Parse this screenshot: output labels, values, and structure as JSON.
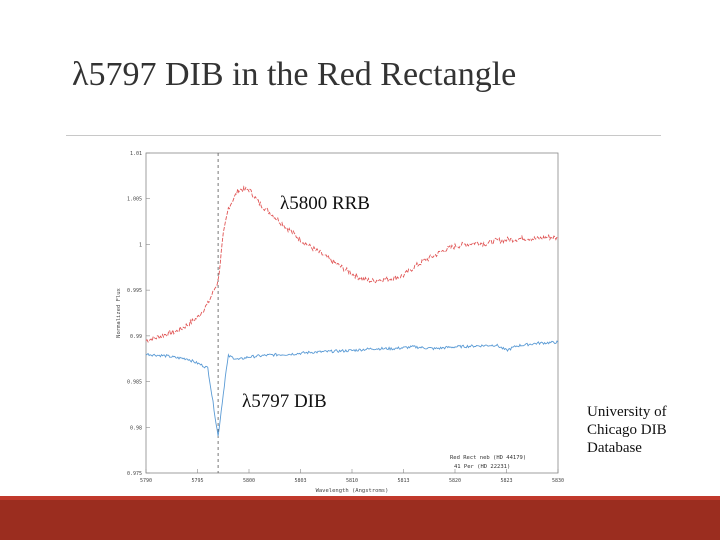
{
  "slide": {
    "title": "λ5797 DIB in the Red Rectangle",
    "source_note": "University of\nChicago DIB\nDatabase"
  },
  "colors": {
    "rrb_series": "#e05555",
    "dib_series": "#5b9bd5",
    "footer": "#9b2d1f",
    "footer_accent": "#c0392b"
  },
  "chart_data": {
    "type": "line",
    "xlabel": "Wavelength (Angstroms)",
    "ylabel": "Normalized Flux",
    "xlim": [
      5790,
      5830
    ],
    "ylim": [
      0.975,
      1.01
    ],
    "x_ticks": [
      "5790",
      "5795",
      "5800",
      "5803",
      "5810",
      "5813",
      "5820",
      "5823",
      "5830"
    ],
    "y_ticks": [
      "1.01",
      "1.005",
      "1",
      "0.995",
      "0.99",
      "0.985",
      "0.98",
      "0.975"
    ],
    "annotations": [
      "λ5800 RRB",
      "λ5797 DIB"
    ],
    "marker_line_x": 5797,
    "series": [
      {
        "name": "Red Rect neb (HD 44179)",
        "color": "#e05555",
        "points": [
          [
            5790,
            0.9895
          ],
          [
            5791,
            0.9898
          ],
          [
            5792,
            0.9902
          ],
          [
            5793,
            0.9905
          ],
          [
            5794,
            0.9912
          ],
          [
            5795,
            0.992
          ],
          [
            5796,
            0.9935
          ],
          [
            5797,
            0.996
          ],
          [
            5797.5,
            1.001
          ],
          [
            5798,
            1.004
          ],
          [
            5799,
            1.006
          ],
          [
            5800,
            1.006
          ],
          [
            5801,
            1.0045
          ],
          [
            5802,
            1.0035
          ],
          [
            5803,
            1.0025
          ],
          [
            5804,
            1.0015
          ],
          [
            5805,
            1.0005
          ],
          [
            5806,
            0.9997
          ],
          [
            5807,
            0.999
          ],
          [
            5808,
            0.9982
          ],
          [
            5809,
            0.9975
          ],
          [
            5810,
            0.9968
          ],
          [
            5811,
            0.9962
          ],
          [
            5812,
            0.996
          ],
          [
            5813,
            0.9962
          ],
          [
            5814,
            0.9963
          ],
          [
            5815,
            0.9966
          ],
          [
            5816,
            0.9975
          ],
          [
            5817,
            0.9982
          ],
          [
            5818,
            0.9988
          ],
          [
            5819,
            0.9994
          ],
          [
            5820,
            0.9998
          ],
          [
            5821,
            1.0
          ],
          [
            5822,
            1.0002
          ],
          [
            5823,
            1.0001
          ],
          [
            5824,
            1.0004
          ],
          [
            5825,
            1.0005
          ],
          [
            5826,
            1.0006
          ],
          [
            5827,
            1.0007
          ],
          [
            5828,
            1.0006
          ],
          [
            5829,
            1.0008
          ],
          [
            5830,
            1.0007
          ]
        ]
      },
      {
        "name": "41 Per (HD 22231)",
        "color": "#5b9bd5",
        "points": [
          [
            5790,
            0.988
          ],
          [
            5792,
            0.9878
          ],
          [
            5793,
            0.9876
          ],
          [
            5794,
            0.9875
          ],
          [
            5795,
            0.987
          ],
          [
            5796,
            0.9865
          ],
          [
            5797,
            0.979
          ],
          [
            5797.7,
            0.9855
          ],
          [
            5798,
            0.9878
          ],
          [
            5799,
            0.9874
          ],
          [
            5800,
            0.9877
          ],
          [
            5802,
            0.9879
          ],
          [
            5804,
            0.988
          ],
          [
            5806,
            0.9882
          ],
          [
            5808,
            0.9883
          ],
          [
            5810,
            0.9884
          ],
          [
            5812,
            0.9886
          ],
          [
            5814,
            0.9886
          ],
          [
            5816,
            0.9888
          ],
          [
            5818,
            0.9886
          ],
          [
            5820,
            0.9888
          ],
          [
            5822,
            0.9889
          ],
          [
            5824,
            0.989
          ],
          [
            5825,
            0.9884
          ],
          [
            5826,
            0.9889
          ],
          [
            5828,
            0.9892
          ],
          [
            5830,
            0.9893
          ]
        ]
      }
    ]
  }
}
